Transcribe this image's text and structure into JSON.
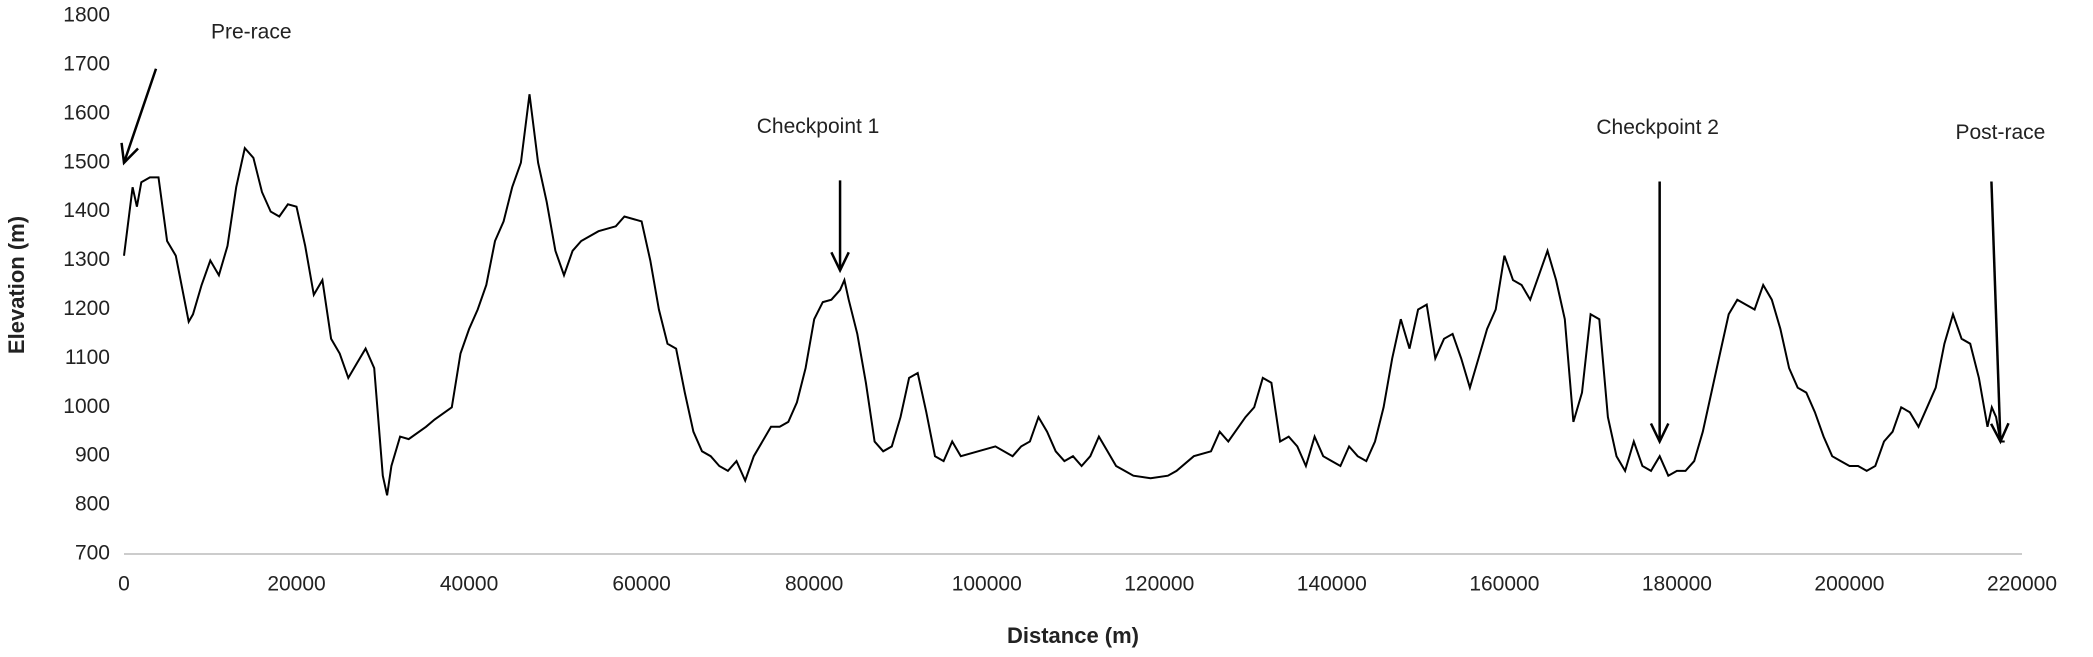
{
  "chart_data": {
    "type": "line",
    "x_label": "Distance (m)",
    "y_label": "Elevation (m)",
    "color": "#000000",
    "x": [
      0,
      1000,
      1500,
      2000,
      3000,
      4000,
      5000,
      6000,
      7000,
      7500,
      8000,
      9000,
      10000,
      11000,
      12000,
      13000,
      14000,
      15000,
      16000,
      17000,
      18000,
      19000,
      20000,
      21000,
      22000,
      23000,
      24000,
      25000,
      26000,
      27000,
      28000,
      29000,
      30000,
      30500,
      31000,
      32000,
      33000,
      35000,
      36000,
      38000,
      39000,
      40000,
      41000,
      42000,
      43000,
      44000,
      45000,
      46000,
      47000,
      48000,
      49000,
      50000,
      51000,
      52000,
      53000,
      55000,
      57000,
      58000,
      60000,
      61000,
      62000,
      63000,
      64000,
      65000,
      66000,
      67000,
      68000,
      69000,
      70000,
      71000,
      72000,
      73000,
      75000,
      76000,
      77000,
      78000,
      79000,
      80000,
      81000,
      82000,
      83000,
      83500,
      84000,
      85000,
      86000,
      87000,
      88000,
      89000,
      90000,
      91000,
      92000,
      93000,
      94000,
      95000,
      96000,
      97000,
      99000,
      101000,
      103000,
      104000,
      105000,
      106000,
      107000,
      108000,
      109000,
      110000,
      111000,
      112000,
      113000,
      114000,
      115000,
      116000,
      117000,
      119000,
      121000,
      122000,
      124000,
      126000,
      127000,
      128000,
      130000,
      131000,
      132000,
      133000,
      134000,
      135000,
      136000,
      137000,
      138000,
      139000,
      140000,
      141000,
      142000,
      143000,
      144000,
      145000,
      146000,
      147000,
      148000,
      149000,
      150000,
      151000,
      152000,
      153000,
      154000,
      155000,
      156000,
      157000,
      158000,
      159000,
      160000,
      161000,
      162000,
      163000,
      164000,
      165000,
      166000,
      167000,
      168000,
      169000,
      170000,
      171000,
      172000,
      173000,
      174000,
      175000,
      176000,
      177000,
      178000,
      179000,
      180000,
      181000,
      182000,
      183000,
      184000,
      185000,
      186000,
      187000,
      188000,
      189000,
      190000,
      191000,
      192000,
      193000,
      194000,
      195000,
      196000,
      197000,
      198000,
      199000,
      200000,
      201000,
      202000,
      203000,
      204000,
      205000,
      206000,
      207000,
      208000,
      209000,
      210000,
      211000,
      212000,
      213000,
      214000,
      215000,
      216000,
      216500,
      217000,
      217500,
      218000
    ],
    "values": [
      1310,
      1450,
      1410,
      1460,
      1470,
      1470,
      1340,
      1310,
      1220,
      1175,
      1190,
      1250,
      1300,
      1270,
      1330,
      1450,
      1530,
      1510,
      1440,
      1400,
      1390,
      1415,
      1410,
      1330,
      1230,
      1260,
      1140,
      1110,
      1060,
      1090,
      1120,
      1080,
      860,
      820,
      880,
      940,
      935,
      960,
      975,
      1000,
      1110,
      1160,
      1200,
      1250,
      1340,
      1380,
      1450,
      1500,
      1640,
      1500,
      1420,
      1320,
      1270,
      1320,
      1340,
      1360,
      1370,
      1390,
      1380,
      1300,
      1200,
      1130,
      1120,
      1030,
      950,
      910,
      900,
      880,
      870,
      890,
      850,
      900,
      960,
      960,
      970,
      1010,
      1080,
      1180,
      1215,
      1220,
      1240,
      1260,
      1220,
      1150,
      1050,
      930,
      910,
      920,
      980,
      1060,
      1070,
      990,
      900,
      890,
      930,
      900,
      910,
      920,
      900,
      920,
      930,
      980,
      950,
      910,
      890,
      900,
      880,
      900,
      940,
      910,
      880,
      870,
      860,
      855,
      860,
      870,
      900,
      910,
      950,
      930,
      980,
      1000,
      1060,
      1050,
      930,
      940,
      920,
      880,
      940,
      900,
      890,
      880,
      920,
      900,
      890,
      930,
      1000,
      1100,
      1180,
      1120,
      1200,
      1210,
      1100,
      1140,
      1150,
      1100,
      1040,
      1100,
      1160,
      1200,
      1310,
      1260,
      1250,
      1220,
      1270,
      1320,
      1260,
      1180,
      970,
      1030,
      1190,
      1180,
      980,
      900,
      870,
      930,
      880,
      870,
      900,
      860,
      870,
      870,
      890,
      950,
      1030,
      1110,
      1190,
      1220,
      1210,
      1200,
      1250,
      1220,
      1160,
      1080,
      1040,
      1030,
      990,
      940,
      900,
      890,
      880,
      880,
      870,
      880,
      930,
      950,
      1000,
      990,
      960,
      1000,
      1040,
      1130,
      1190,
      1140,
      1130,
      1060,
      960,
      1000,
      980,
      930,
      930
    ],
    "xlim": [
      0,
      220000
    ],
    "xticks": [
      0,
      20000,
      40000,
      60000,
      80000,
      100000,
      120000,
      140000,
      160000,
      180000,
      200000,
      220000
    ],
    "ylim": [
      700,
      1800
    ],
    "yticks": [
      700,
      800,
      900,
      1000,
      1100,
      1200,
      1300,
      1400,
      1500,
      1600,
      1700,
      1800
    ],
    "annotations": [
      {
        "text": "Pre-race",
        "x": 0,
        "y": 1500
      },
      {
        "text": "Checkpoint 1",
        "x": 83000,
        "y": 1280
      },
      {
        "text": "Checkpoint 2",
        "x": 178000,
        "y": 930
      },
      {
        "text": "Post-race",
        "x": 217500,
        "y": 930
      }
    ]
  }
}
